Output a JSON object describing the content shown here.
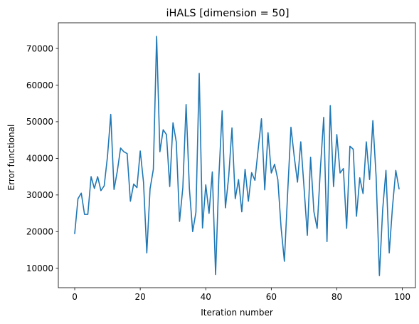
{
  "chart_data": {
    "type": "line",
    "title": "iHALS [dimension = 50]",
    "xlabel": "Iteration number",
    "ylabel": "Error functional",
    "xlim": [
      -5,
      104
    ],
    "ylim": [
      4700,
      77000
    ],
    "xticks": [
      0,
      20,
      40,
      60,
      80,
      100
    ],
    "yticks": [
      10000,
      20000,
      30000,
      40000,
      50000,
      60000,
      70000
    ],
    "xtick_labels": [
      "0",
      "20",
      "40",
      "60",
      "80",
      "100"
    ],
    "ytick_labels": [
      "10000",
      "20000",
      "30000",
      "40000",
      "50000",
      "60000",
      "70000"
    ],
    "grid": false,
    "legend": "none",
    "series": [
      {
        "color": "#1f77b4",
        "x": [
          0,
          1,
          2,
          3,
          4,
          5,
          6,
          7,
          8,
          9,
          10,
          11,
          12,
          13,
          14,
          15,
          16,
          17,
          18,
          19,
          20,
          21,
          22,
          23,
          24,
          25,
          26,
          27,
          28,
          29,
          30,
          31,
          32,
          33,
          34,
          35,
          36,
          37,
          38,
          39,
          40,
          41,
          42,
          43,
          44,
          45,
          46,
          47,
          48,
          49,
          50,
          51,
          52,
          53,
          54,
          55,
          56,
          57,
          58,
          59,
          60,
          61,
          62,
          63,
          64,
          65,
          66,
          67,
          68,
          69,
          70,
          71,
          72,
          73,
          74,
          75,
          76,
          77,
          78,
          79,
          80,
          81,
          82,
          83,
          84,
          85,
          86,
          87,
          88,
          89,
          90,
          91,
          92,
          93,
          94,
          95,
          96,
          97,
          98,
          99
        ],
        "y": [
          19500,
          29000,
          30500,
          24700,
          24700,
          35000,
          31800,
          35000,
          31200,
          32500,
          40500,
          52000,
          31500,
          36500,
          42800,
          41800,
          41300,
          28300,
          33000,
          32000,
          42000,
          33500,
          14200,
          31700,
          37000,
          73300,
          41800,
          47800,
          46500,
          32300,
          49700,
          44500,
          22800,
          32000,
          54700,
          31800,
          20000,
          25300,
          63200,
          21000,
          32800,
          25000,
          36300,
          8300,
          35000,
          53000,
          26500,
          35000,
          48300,
          29000,
          34200,
          25400,
          37000,
          28300,
          36100,
          34000,
          42500,
          50800,
          31400,
          47000,
          36000,
          38400,
          34200,
          21000,
          11900,
          30700,
          48500,
          40500,
          33500,
          44500,
          32000,
          19000,
          40300,
          25500,
          20900,
          37300,
          51200,
          17300,
          54400,
          32300,
          46500,
          36000,
          37200,
          20900,
          43300,
          42500,
          24200,
          34700,
          30400,
          44500,
          34200,
          50300,
          35000,
          8000,
          26000,
          36700,
          14200,
          26800,
          36700,
          31700
        ]
      }
    ]
  }
}
